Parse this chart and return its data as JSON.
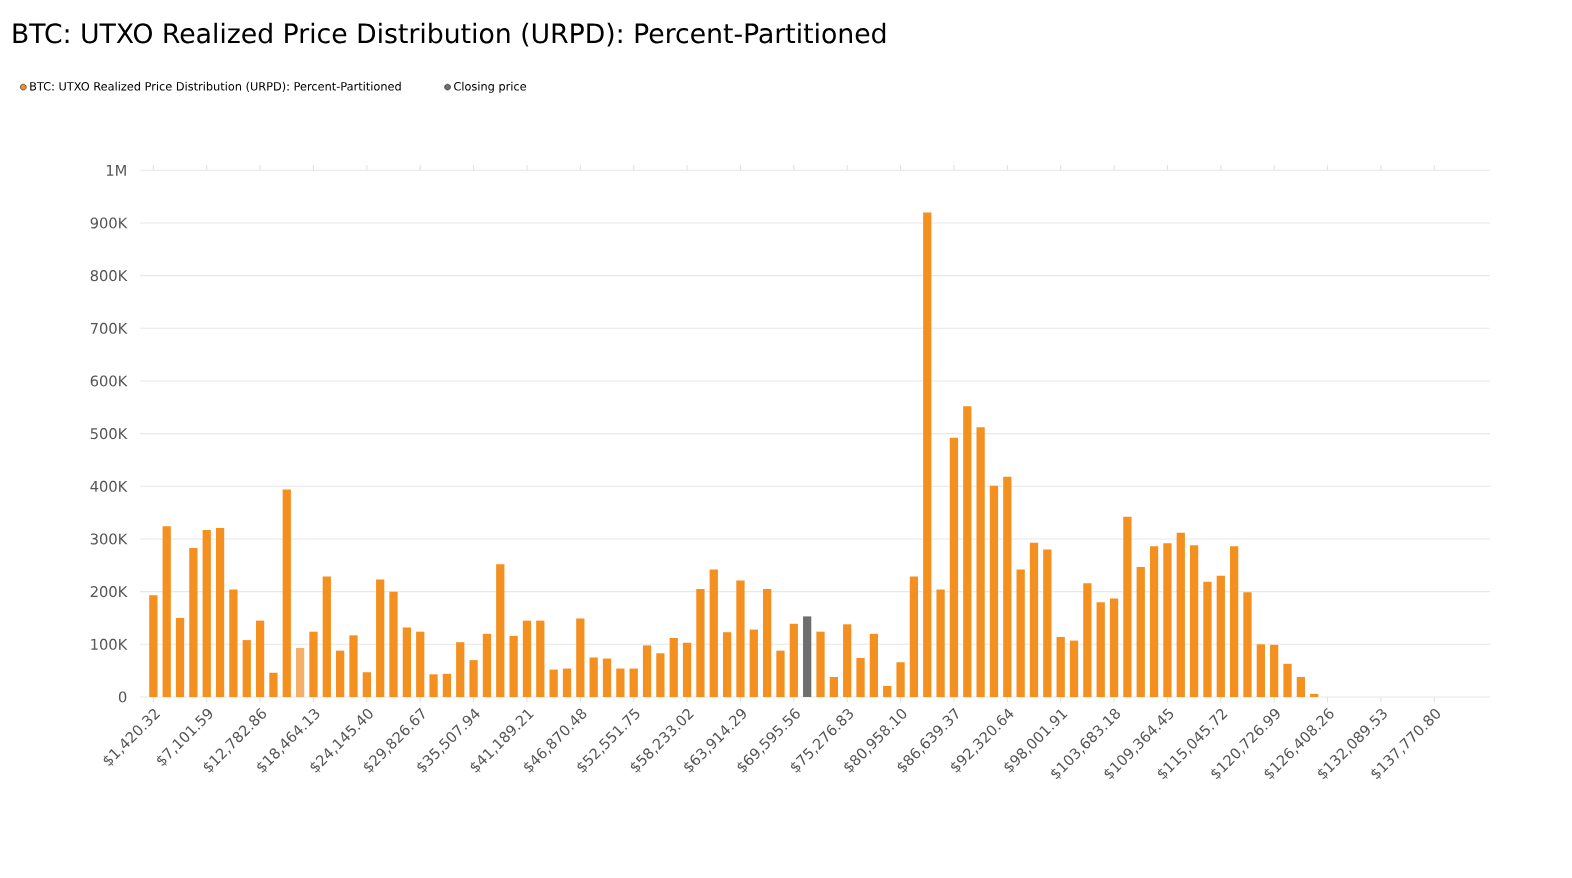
{
  "chart_data": {
    "type": "bar",
    "title": "BTC: UTXO Realized Price Distribution (URPD): Percent-Partitioned",
    "series": [
      {
        "name": "BTC: UTXO Realized Price Distribution (URPD): Percent-Partitioned",
        "color": "#f39020",
        "x": [
          1420,
          2841,
          4261,
          5681,
          7102,
          8522,
          9942,
          11363,
          12783,
          14203,
          15623,
          17044,
          18464,
          19884,
          21305,
          22725,
          24145,
          25566,
          26986,
          28406,
          29827,
          31247,
          32667,
          34088,
          35508,
          36928,
          38349,
          39769,
          41189,
          42610,
          44030,
          45450,
          46870,
          48291,
          49711,
          51131,
          52552,
          53972,
          55392,
          56813,
          58233,
          59653,
          61074,
          62494,
          63914,
          65335,
          66755,
          68175,
          69596,
          71016,
          72436,
          73857,
          75277,
          76697,
          78117,
          79538,
          80958,
          82378,
          83799,
          85219,
          86639,
          88060,
          89480,
          90900,
          92321,
          93741,
          95161,
          96582,
          98002,
          99422,
          100843,
          102263,
          103683,
          105104,
          106524,
          107944,
          109364,
          110785,
          112205,
          113625,
          115046,
          116466,
          117886,
          119307,
          120727,
          122147,
          123568,
          124988
        ],
        "values": [
          193000,
          324000,
          150000,
          283000,
          317000,
          321000,
          204000,
          108000,
          145000,
          46000,
          394000,
          93000,
          124000,
          229000,
          88000,
          117000,
          47000,
          223000,
          200000,
          132000,
          124000,
          43000,
          44000,
          104000,
          70000,
          120000,
          252000,
          116000,
          145000,
          145000,
          52000,
          54000,
          149000,
          75000,
          73000,
          54000,
          54000,
          98000,
          83000,
          112000,
          103000,
          205000,
          242000,
          123000,
          221000,
          128000,
          205000,
          88000,
          139000,
          null,
          124000,
          38000,
          138000,
          74000,
          120000,
          21000,
          66000,
          229000,
          920000,
          204000,
          492000,
          552000,
          512000,
          401000,
          418000,
          242000,
          293000,
          280000,
          114000,
          107000,
          216000,
          180000,
          187000,
          342000,
          247000,
          286000,
          292000,
          312000,
          288000,
          219000,
          230000,
          286000,
          199000,
          100000,
          99000,
          63000,
          38000,
          6000
        ],
        "colors": [
          "#f39020",
          "#f39020",
          "#f39020",
          "#f39020",
          "#f39020",
          "#f39020",
          "#f39020",
          "#f39020",
          "#f39020",
          "#f39020",
          "#f39020",
          "#f4b066",
          "#f39020",
          "#f39020",
          "#f39020",
          "#f39020",
          "#f39020",
          "#f39020",
          "#f39020",
          "#f39020",
          "#f39020",
          "#f39020",
          "#f39020",
          "#f39020",
          "#f39020",
          "#f39020",
          "#f39020",
          "#f39020",
          "#f39020",
          "#f39020",
          "#f39020",
          "#f39020",
          "#f39020",
          "#f39020",
          "#f39020",
          "#f39020",
          "#f39020",
          "#f39020",
          "#f39020",
          "#f39020",
          "#f39020",
          "#f39020",
          "#f39020",
          "#f39020",
          "#f39020",
          "#f39020",
          "#f39020",
          "#f39020",
          "#f39020",
          "#f39020",
          "#f39020",
          "#f39020",
          "#f39020",
          "#f39020",
          "#f39020",
          "#f39020",
          "#f39020",
          "#f39020",
          "#f39020",
          "#f39020",
          "#f39020",
          "#f39020",
          "#f39020",
          "#f39020",
          "#f39020",
          "#f39020",
          "#f39020",
          "#f39020",
          "#f39020",
          "#f39020",
          "#f39020",
          "#f39020",
          "#f39020",
          "#f39020",
          "#f39020",
          "#f39020",
          "#f39020",
          "#f39020",
          "#f39020",
          "#f39020",
          "#f39020",
          "#f39020",
          "#f39020",
          "#f39020",
          "#f39020",
          "#f39020",
          "#f39020",
          "#f39020"
        ]
      },
      {
        "name": "Closing price",
        "color": "#6e6e6e",
        "x": [
          71016
        ],
        "values": [
          153000
        ]
      }
    ],
    "xlim": [
      0,
      143700
    ],
    "ylim": [
      0,
      1000000
    ],
    "xticks": [
      {
        "value": 1420.32,
        "label": "$1,420.32"
      },
      {
        "value": 7101.59,
        "label": "$7,101.59"
      },
      {
        "value": 12782.86,
        "label": "$12,782.86"
      },
      {
        "value": 18464.13,
        "label": "$18,464.13"
      },
      {
        "value": 24145.4,
        "label": "$24,145.40"
      },
      {
        "value": 29826.67,
        "label": "$29,826.67"
      },
      {
        "value": 35507.94,
        "label": "$35,507.94"
      },
      {
        "value": 41189.21,
        "label": "$41,189.21"
      },
      {
        "value": 46870.48,
        "label": "$46,870.48"
      },
      {
        "value": 52551.75,
        "label": "$52,551.75"
      },
      {
        "value": 58233.02,
        "label": "$58,233.02"
      },
      {
        "value": 63914.29,
        "label": "$63,914.29"
      },
      {
        "value": 69595.56,
        "label": "$69,595.56"
      },
      {
        "value": 75276.83,
        "label": "$75,276.83"
      },
      {
        "value": 80958.1,
        "label": "$80,958.10"
      },
      {
        "value": 86639.37,
        "label": "$86,639.37"
      },
      {
        "value": 92320.64,
        "label": "$92,320.64"
      },
      {
        "value": 98001.91,
        "label": "$98,001.91"
      },
      {
        "value": 103683.18,
        "label": "$103,683.18"
      },
      {
        "value": 109364.45,
        "label": "$109,364.45"
      },
      {
        "value": 115045.72,
        "label": "$115,045.72"
      },
      {
        "value": 120726.99,
        "label": "$120,726.99"
      },
      {
        "value": 126408.26,
        "label": "$126,408.26"
      },
      {
        "value": 132089.53,
        "label": "$132,089.53"
      },
      {
        "value": 137770.8,
        "label": "$137,770.80"
      }
    ],
    "yticks": [
      0,
      {
        "value": 100000,
        "label": "100K"
      },
      {
        "value": 200000,
        "label": "200K"
      },
      {
        "value": 300000,
        "label": "300K"
      },
      {
        "value": 400000,
        "label": "400K"
      },
      {
        "value": 500000,
        "label": "500K"
      },
      {
        "value": 600000,
        "label": "600K"
      },
      {
        "value": 700000,
        "label": "700K"
      },
      {
        "value": 800000,
        "label": "800K"
      },
      {
        "value": 900000,
        "label": "900K"
      },
      {
        "value": 1000000,
        "label": "1M"
      }
    ],
    "grid": "y",
    "legend": "top left"
  }
}
